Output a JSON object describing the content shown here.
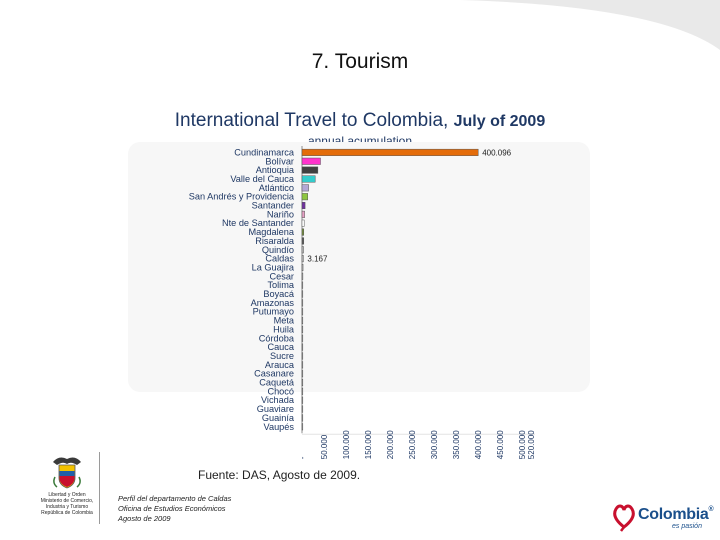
{
  "slide_title": "7. Tourism",
  "source": "Fuente: DAS, Agosto  de 2009.",
  "footer_left": [
    "Perfil del departamento de Caldas",
    "Oficina de Estudios Económicos",
    "Agosto  de 2009"
  ],
  "ministry": {
    "lines": [
      "Libertad y Orden",
      "Ministerio de Comercio,",
      "Industria y Turismo",
      "República de Colombia"
    ]
  },
  "brand": {
    "name": "Colombia",
    "tagline": "es pasión",
    "registered": "®"
  },
  "chart_data": {
    "type": "bar",
    "orientation": "horizontal",
    "title": "International Travel to Colombia,",
    "title_suffix": "July of 2009",
    "subtitle": "annual acumulation",
    "xlim": [
      0,
      520000
    ],
    "xticks": [
      0,
      50000,
      100000,
      150000,
      200000,
      250000,
      300000,
      350000,
      400000,
      450000,
      500000,
      520000
    ],
    "xtick_labels": [
      "-",
      "50.000",
      "100.000",
      "150.000",
      "200.000",
      "250.000",
      "300.000",
      "350.000",
      "400.000",
      "450.000",
      "500.000",
      "520.000"
    ],
    "categories": [
      "Cundinamarca",
      "Bolívar",
      "Antioquia",
      "Valle del Cauca",
      "Atlántico",
      "San Andrés y Providencia",
      "Santander",
      "Nariño",
      "Nte de Santander",
      "Magdalena",
      "Risaralda",
      "Quindío",
      "Caldas",
      "La Guajira",
      "Cesar",
      "Tolima",
      "Boyacá",
      "Amazonas",
      "Putumayo",
      "Meta",
      "Huila",
      "Córdoba",
      "Cauca",
      "Sucre",
      "Arauca",
      "Casanare",
      "Caquetá",
      "Chocó",
      "Vichada",
      "Guaviare",
      "Guainía",
      "Vaupés"
    ],
    "values": [
      400096,
      42000,
      36000,
      30000,
      15000,
      13000,
      7000,
      6000,
      5000,
      4000,
      4000,
      3500,
      3167,
      2400,
      2000,
      1800,
      1600,
      1500,
      1300,
      1200,
      1100,
      1000,
      900,
      800,
      500,
      450,
      400,
      300,
      250,
      200,
      150,
      100
    ],
    "bar_colors": [
      "#e46c0a",
      "#ff33cc",
      "#404040",
      "#33cccc",
      "#b4a7d6",
      "#8dc63f",
      "#7030a0",
      "#e6a0c4",
      "#ffffff",
      "#76923c",
      "#595959",
      "#c0c0c0",
      "#c0c0c0",
      "#c0c0c0",
      "#c0c0c0",
      "#c0c0c0",
      "#c0c0c0",
      "#c0c0c0",
      "#c0c0c0",
      "#c0c0c0",
      "#c0c0c0",
      "#c0c0c0",
      "#c0c0c0",
      "#c0c0c0",
      "#c0c0c0",
      "#c0c0c0",
      "#c0c0c0",
      "#c0c0c0",
      "#c0c0c0",
      "#c0c0c0",
      "#c0c0c0",
      "#c0c0c0"
    ],
    "data_labels": [
      {
        "category": "Cundinamarca",
        "text": "400.096"
      },
      {
        "category": "Caldas",
        "text": "3.167"
      }
    ],
    "grid": false,
    "legend": "none"
  }
}
